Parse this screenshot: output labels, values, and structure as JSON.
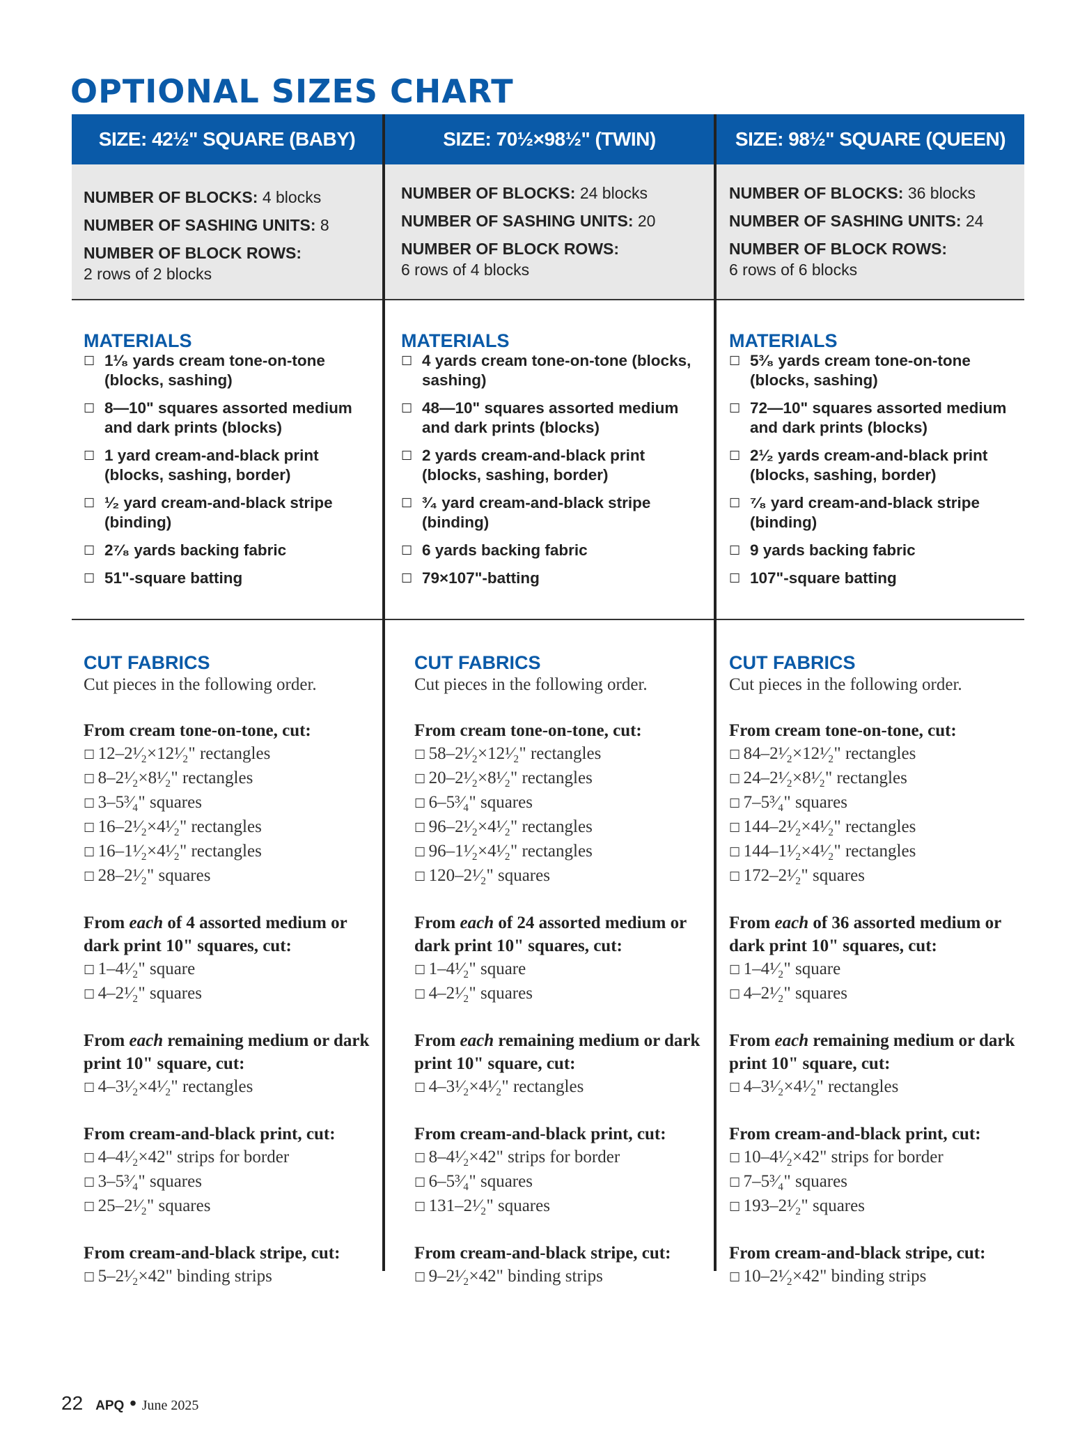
{
  "title": "OPTIONAL SIZES CHART",
  "colors": {
    "accent": "#0a5aa8",
    "info_bg": "#e8e8e8"
  },
  "icons": {
    "checkbox": "empty-checkbox-icon"
  },
  "columns": [
    {
      "header": "SIZE: 42½\" SQUARE (BABY)",
      "blocks_label": "NUMBER OF BLOCKS:",
      "blocks_value": "4 blocks",
      "sashing_label": "NUMBER OF SASHING UNITS:",
      "sashing_value": "8",
      "rows_label": "NUMBER OF BLOCK ROWS:",
      "rows_value": "2 rows of 2 blocks",
      "materials_title": "MATERIALS",
      "materials": [
        "1¹⁄₈ yards cream tone-on-tone (blocks, sashing)",
        "8—10\" squares assorted medium and dark prints (blocks)",
        "1 yard cream-and-black print (blocks, sashing, border)",
        "¹⁄₂ yard cream-and-black stripe (binding)",
        "2⁷⁄₈ yards backing fabric",
        "51\"-square batting"
      ],
      "cut_title": "CUT FABRICS",
      "cut_intro": "Cut pieces in the following order.",
      "groups": [
        {
          "pre": "From cream tone-on-tone, cut:",
          "em": "",
          "post": "",
          "items": [
            "12–2¹⁄₂×12¹⁄₂\" rectangles",
            "8–2¹⁄₂×8¹⁄₂\" rectangles",
            "3–5³⁄₄\" squares",
            "16–2¹⁄₂×4¹⁄₂\" rectangles",
            "16–1¹⁄₂×4¹⁄₂\" rectangles",
            "28–2¹⁄₂\" squares"
          ]
        },
        {
          "pre": "From ",
          "em": "each",
          "post": " of 4 assorted medium or dark print 10\" squares, cut:",
          "items": [
            "1–4¹⁄₂\" square",
            "4–2¹⁄₂\" squares"
          ]
        },
        {
          "pre": "From ",
          "em": "each",
          "post": " remaining medium or dark print 10\" square, cut:",
          "items": [
            "4–3¹⁄₂×4¹⁄₂\" rectangles"
          ]
        },
        {
          "pre": "From cream-and-black print, cut:",
          "em": "",
          "post": "",
          "items": [
            "4–4¹⁄₂×42\" strips for border",
            "3–5³⁄₄\" squares",
            "25–2¹⁄₂\" squares"
          ]
        },
        {
          "pre": "From cream-and-black stripe, cut:",
          "em": "",
          "post": "",
          "items": [
            "5–2¹⁄₂×42\" binding strips"
          ]
        }
      ]
    },
    {
      "header": "SIZE: 70½×98½\" (TWIN)",
      "blocks_label": "NUMBER OF BLOCKS:",
      "blocks_value": "24 blocks",
      "sashing_label": "NUMBER OF SASHING UNITS:",
      "sashing_value": "20",
      "rows_label": "NUMBER OF BLOCK ROWS:",
      "rows_value": "6 rows of 4 blocks",
      "materials_title": "MATERIALS",
      "materials": [
        "4 yards cream tone-on-tone (blocks, sashing)",
        "48—10\" squares assorted medium and dark prints (blocks)",
        "2 yards cream-and-black print (blocks, sashing, border)",
        "³⁄₄ yard cream-and-black stripe (binding)",
        "6 yards backing fabric",
        "79×107\"-batting"
      ],
      "cut_title": "CUT FABRICS",
      "cut_intro": "Cut pieces in the following order.",
      "groups": [
        {
          "pre": "From cream tone-on-tone, cut:",
          "em": "",
          "post": "",
          "items": [
            "58–2¹⁄₂×12¹⁄₂\" rectangles",
            "20–2¹⁄₂×8¹⁄₂\" rectangles",
            "6–5³⁄₄\" squares",
            "96–2¹⁄₂×4¹⁄₂\" rectangles",
            "96–1¹⁄₂×4¹⁄₂\" rectangles",
            "120–2¹⁄₂\" squares"
          ]
        },
        {
          "pre": "From ",
          "em": "each",
          "post": " of 24 assorted medium or dark print 10\" squares, cut:",
          "items": [
            "1–4¹⁄₂\" square",
            "4–2¹⁄₂\" squares"
          ]
        },
        {
          "pre": "From ",
          "em": "each",
          "post": " remaining medium or dark print 10\" square, cut:",
          "items": [
            "4–3¹⁄₂×4¹⁄₂\" rectangles"
          ]
        },
        {
          "pre": "From cream-and-black print, cut:",
          "em": "",
          "post": "",
          "items": [
            "8–4¹⁄₂×42\" strips for border",
            "6–5³⁄₄\" squares",
            "131–2¹⁄₂\" squares"
          ]
        },
        {
          "pre": "From cream-and-black stripe, cut:",
          "em": "",
          "post": "",
          "items": [
            "9–2¹⁄₂×42\" binding strips"
          ]
        }
      ]
    },
    {
      "header": "SIZE: 98½\" SQUARE (QUEEN)",
      "blocks_label": "NUMBER OF BLOCKS:",
      "blocks_value": "36 blocks",
      "sashing_label": "NUMBER OF SASHING UNITS:",
      "sashing_value": "24",
      "rows_label": "NUMBER OF BLOCK ROWS:",
      "rows_value": "6 rows of 6 blocks",
      "materials_title": "MATERIALS",
      "materials": [
        "5³⁄₈ yards cream tone-on-tone (blocks, sashing)",
        "72—10\" squares assorted medium and dark prints (blocks)",
        "2¹⁄₂ yards cream-and-black print (blocks, sashing, border)",
        "⁷⁄₈ yard cream-and-black stripe (binding)",
        "9 yards backing fabric",
        "107\"-square batting"
      ],
      "cut_title": "CUT FABRICS",
      "cut_intro": "Cut pieces in the following order.",
      "groups": [
        {
          "pre": "From cream tone-on-tone, cut:",
          "em": "",
          "post": "",
          "items": [
            "84–2¹⁄₂×12¹⁄₂\" rectangles",
            "24–2¹⁄₂×8¹⁄₂\" rectangles",
            "7–5³⁄₄\" squares",
            "144–2¹⁄₂×4¹⁄₂\" rectangles",
            "144–1¹⁄₂×4¹⁄₂\" rectangles",
            "172–2¹⁄₂\" squares"
          ]
        },
        {
          "pre": "From ",
          "em": "each",
          "post": " of 36 assorted medium or dark print 10\" squares, cut:",
          "items": [
            "1–4¹⁄₂\" square",
            "4–2¹⁄₂\" squares"
          ]
        },
        {
          "pre": "From ",
          "em": "each",
          "post": " remaining medium or dark print 10\" square, cut:",
          "items": [
            "4–3¹⁄₂×4¹⁄₂\" rectangles"
          ]
        },
        {
          "pre": "From cream-and-black print, cut:",
          "em": "",
          "post": "",
          "items": [
            "10–4¹⁄₂×42\" strips for border",
            "7–5³⁄₄\" squares",
            "193–2¹⁄₂\" squares"
          ]
        },
        {
          "pre": "From cream-and-black stripe, cut:",
          "em": "",
          "post": "",
          "items": [
            "10–2¹⁄₂×42\" binding strips"
          ]
        }
      ]
    }
  ],
  "footer": {
    "page": "22",
    "magazine": "APQ",
    "separator": " • ",
    "date": "June 2025"
  }
}
